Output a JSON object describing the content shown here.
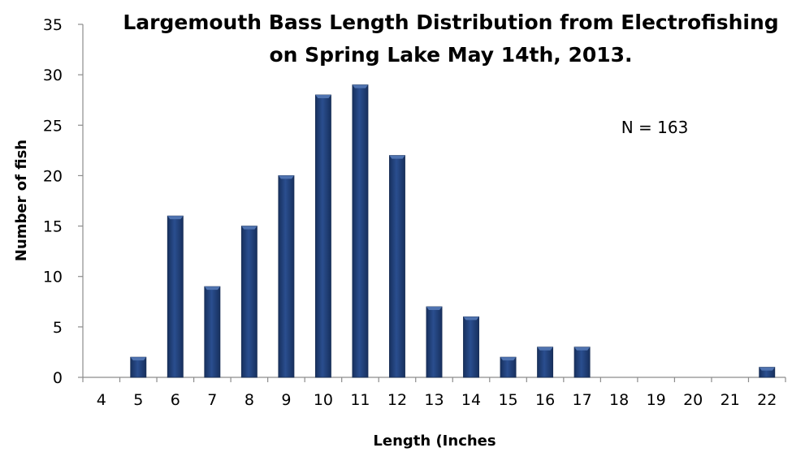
{
  "chart_data": {
    "type": "bar",
    "title_lines": [
      "Largemouth Bass Length Distribution from Electrofishing",
      "on  Spring Lake May 14th, 2013."
    ],
    "xlabel": "Length (Inches",
    "ylabel": "Number of fish",
    "annotation": "N = 163",
    "categories": [
      "4",
      "5",
      "6",
      "7",
      "8",
      "9",
      "10",
      "11",
      "12",
      "13",
      "14",
      "15",
      "16",
      "17",
      "18",
      "19",
      "20",
      "21",
      "22"
    ],
    "values": [
      0,
      2,
      16,
      9,
      15,
      20,
      28,
      29,
      22,
      7,
      6,
      2,
      3,
      3,
      0,
      0,
      0,
      0,
      1
    ],
    "ylim": [
      0,
      35
    ],
    "yticks": [
      0,
      5,
      10,
      15,
      20,
      25,
      30,
      35
    ],
    "grid": false,
    "legend": "none",
    "colors": {
      "bar": "#1F3D73",
      "bar_highlight": "#4F73B0",
      "axis": "#8C8C8C"
    }
  }
}
